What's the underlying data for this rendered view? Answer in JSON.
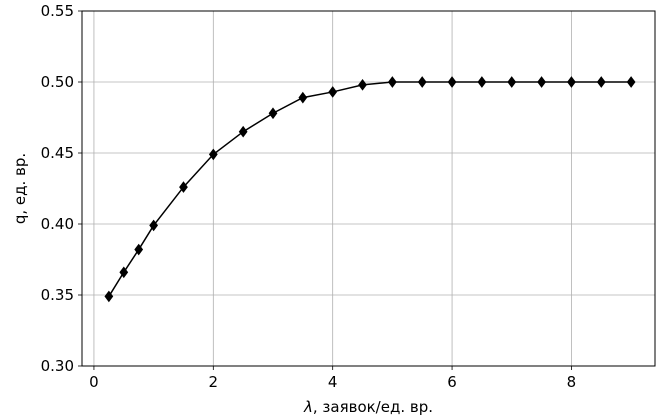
{
  "chart_data": {
    "type": "line",
    "xlabel_symbol": "λ",
    "xlabel_rest": ", заявок/ед. вр.",
    "ylabel": "q, ед. вр.",
    "xlim": [
      -0.2,
      9.4
    ],
    "ylim": [
      0.3,
      0.55
    ],
    "grid": true,
    "x_ticks": [
      0,
      2,
      4,
      6,
      8
    ],
    "x_tick_labels": [
      "0",
      "2",
      "4",
      "6",
      "8"
    ],
    "y_ticks": [
      0.3,
      0.35,
      0.4,
      0.45,
      0.5,
      0.55
    ],
    "y_tick_labels": [
      "0.30",
      "0.35",
      "0.40",
      "0.45",
      "0.50",
      "0.55"
    ],
    "series": [
      {
        "color": "#000000",
        "marker": "diamond",
        "x": [
          0.25,
          0.5,
          0.75,
          1.0,
          1.5,
          2.0,
          2.5,
          3.0,
          3.5,
          4.0,
          4.5,
          5.0,
          5.5,
          6.0,
          6.5,
          7.0,
          7.5,
          8.0,
          8.5,
          9.0
        ],
        "y": [
          0.349,
          0.366,
          0.382,
          0.399,
          0.426,
          0.449,
          0.465,
          0.478,
          0.489,
          0.493,
          0.498,
          0.5,
          0.5,
          0.5,
          0.5,
          0.5,
          0.5,
          0.5,
          0.5,
          0.5
        ]
      }
    ]
  }
}
